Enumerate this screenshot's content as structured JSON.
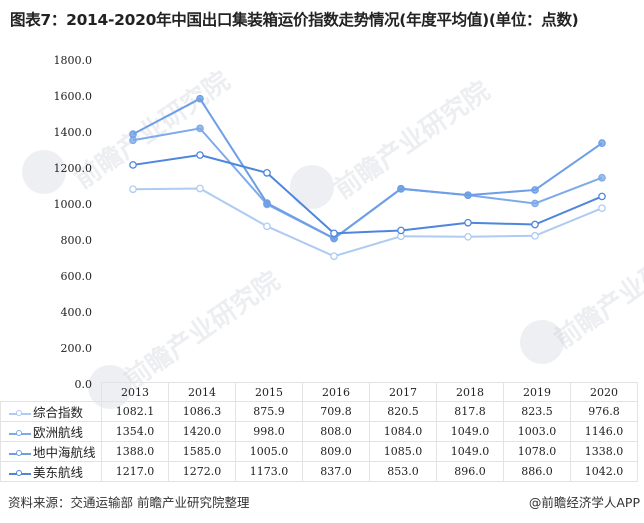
{
  "title": "图表7：2014-2020年中国出口集装箱运价指数走势情况(年度平均值)(单位：点数)",
  "footer": {
    "source": "资料来源：交通运输部 前瞻产业研究院整理",
    "credit": "@前瞻经济学人APP"
  },
  "watermark": {
    "text": "前瞻产业研究院"
  },
  "colors": {
    "综合指数": "#aecbf3",
    "欧洲航线": "#7eaaea",
    "地中海航线": "#6d9ee6",
    "美东航线": "#4d86dc"
  },
  "chart_data": {
    "type": "line",
    "title": "图表7：2014-2020年中国出口集装箱运价指数走势情况(年度平均值)(单位：点数)",
    "xlabel": "",
    "ylabel": "",
    "ylim": [
      0,
      1800
    ],
    "yticks": [
      "0.0",
      "200.0",
      "400.0",
      "600.0",
      "800.0",
      "1000.0",
      "1200.0",
      "1400.0",
      "1600.0",
      "1800.0"
    ],
    "grid": false,
    "legend_position": "table-left",
    "categories": [
      "2013",
      "2014",
      "2015",
      "2016",
      "2017",
      "2018",
      "2019",
      "2020"
    ],
    "series": [
      {
        "name": "综合指数",
        "values": [
          1082.1,
          1086.3,
          875.9,
          709.8,
          820.5,
          817.8,
          823.5,
          976.8
        ],
        "labels": [
          "1082.1",
          "1086.3",
          "875.9",
          "709.8",
          "820.5",
          "817.8",
          "823.5",
          "976.8"
        ]
      },
      {
        "name": "欧洲航线",
        "values": [
          1354.0,
          1420.0,
          998.0,
          808.0,
          1084.0,
          1049.0,
          1003.0,
          1146.0
        ],
        "labels": [
          "1354.0",
          "1420.0",
          "998.0",
          "808.0",
          "1084.0",
          "1049.0",
          "1003.0",
          "1146.0"
        ]
      },
      {
        "name": "地中海航线",
        "values": [
          1388.0,
          1585.0,
          1005.0,
          809.0,
          1085.0,
          1049.0,
          1078.0,
          1338.0
        ],
        "labels": [
          "1388.0",
          "1585.0",
          "1005.0",
          "809.0",
          "1085.0",
          "1049.0",
          "1078.0",
          "1338.0"
        ]
      },
      {
        "name": "美东航线",
        "values": [
          1217.0,
          1272.0,
          1173.0,
          837.0,
          853.0,
          896.0,
          886.0,
          1042.0
        ],
        "labels": [
          "1217.0",
          "1272.0",
          "1173.0",
          "837.0",
          "853.0",
          "896.0",
          "886.0",
          "1042.0"
        ]
      }
    ]
  }
}
